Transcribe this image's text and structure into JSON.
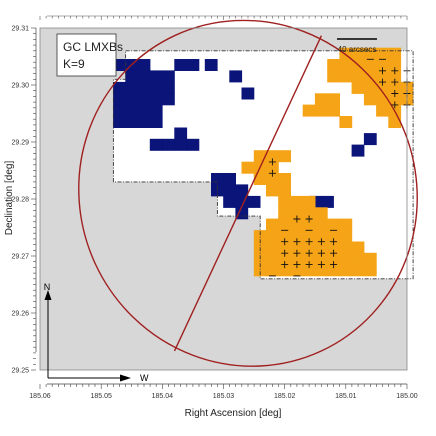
{
  "chart_data": {
    "type": "heatmap",
    "title": "",
    "xlabel": "Right Ascension [deg]",
    "ylabel": "Declination [deg]",
    "xlim": [
      185.06,
      185.0
    ],
    "ylim": [
      29.25,
      29.31
    ],
    "x_ticks": [
      "185.06",
      "185.05",
      "185.04",
      "185.03",
      "185.02",
      "185.01",
      "185.00"
    ],
    "y_ticks": [
      "29.25",
      "29.26",
      "29.27",
      "29.28",
      "29.29",
      "29.30",
      "29.31"
    ],
    "legend": {
      "line1": "GC LMXBs",
      "line2": "K=9"
    },
    "scale_bar_label": "40 arcsecs",
    "compass": {
      "north": "N",
      "west": "W"
    },
    "colors": {
      "outside_region": "#d7d7d7",
      "footprint": "#ffffff",
      "deficit": "#0b1478",
      "excess": "#f6a417",
      "ellipse": "#a02020",
      "major_axis": "#a02020"
    },
    "deficit_cells": [
      [
        185.047,
        29.3035
      ],
      [
        185.045,
        29.3035
      ],
      [
        185.043,
        29.3035
      ],
      [
        185.037,
        29.3035
      ],
      [
        185.035,
        29.3035
      ],
      [
        185.032,
        29.3035
      ],
      [
        185.045,
        29.3015
      ],
      [
        185.043,
        29.3015
      ],
      [
        185.041,
        29.3015
      ],
      [
        185.039,
        29.3015
      ],
      [
        185.047,
        29.2995
      ],
      [
        185.045,
        29.2995
      ],
      [
        185.043,
        29.2995
      ],
      [
        185.041,
        29.2995
      ],
      [
        185.039,
        29.2995
      ],
      [
        185.047,
        29.2975
      ],
      [
        185.045,
        29.2975
      ],
      [
        185.043,
        29.2975
      ],
      [
        185.041,
        29.2975
      ],
      [
        185.039,
        29.2975
      ],
      [
        185.028,
        29.3015
      ],
      [
        185.026,
        29.2985
      ],
      [
        185.047,
        29.2955
      ],
      [
        185.045,
        29.2955
      ],
      [
        185.043,
        29.2955
      ],
      [
        185.041,
        29.2955
      ],
      [
        185.047,
        29.2935
      ],
      [
        185.045,
        29.2935
      ],
      [
        185.043,
        29.2935
      ],
      [
        185.041,
        29.2935
      ],
      [
        185.037,
        29.2915
      ],
      [
        185.035,
        29.2895
      ],
      [
        185.037,
        29.2895
      ],
      [
        185.039,
        29.2895
      ],
      [
        185.041,
        29.2895
      ],
      [
        185.031,
        29.2835
      ],
      [
        185.029,
        29.2835
      ],
      [
        185.031,
        29.2815
      ],
      [
        185.029,
        29.2815
      ],
      [
        185.027,
        29.2815
      ],
      [
        185.029,
        29.2795
      ],
      [
        185.027,
        29.2795
      ],
      [
        185.025,
        29.2795
      ],
      [
        185.027,
        29.2775
      ],
      [
        185.006,
        29.2905
      ],
      [
        185.008,
        29.2885
      ],
      [
        185.015,
        29.2795
      ],
      [
        185.013,
        29.2795
      ]
    ],
    "excess_cells": [
      [
        185.01,
        29.3055
      ],
      [
        185.008,
        29.3055
      ],
      [
        185.006,
        29.3055
      ],
      [
        185.004,
        29.3055
      ],
      [
        185.002,
        29.3055
      ],
      [
        185.012,
        29.3035
      ],
      [
        185.01,
        29.3035
      ],
      [
        185.008,
        29.3035
      ],
      [
        185.006,
        29.3035
      ],
      [
        185.004,
        29.3035
      ],
      [
        185.002,
        29.3035
      ],
      [
        185.012,
        29.3015
      ],
      [
        185.01,
        29.3015
      ],
      [
        185.008,
        29.3015
      ],
      [
        185.006,
        29.3015
      ],
      [
        185.004,
        29.3015
      ],
      [
        185.002,
        29.3015
      ],
      [
        185.008,
        29.2995
      ],
      [
        185.006,
        29.2995
      ],
      [
        185.004,
        29.2995
      ],
      [
        185.002,
        29.2995
      ],
      [
        185.0,
        29.2995
      ],
      [
        185.014,
        29.2975
      ],
      [
        185.012,
        29.2975
      ],
      [
        185.006,
        29.2975
      ],
      [
        185.004,
        29.2975
      ],
      [
        185.002,
        29.2975
      ],
      [
        185.0,
        29.2975
      ],
      [
        185.016,
        29.2955
      ],
      [
        185.014,
        29.2955
      ],
      [
        185.012,
        29.2955
      ],
      [
        185.004,
        29.2955
      ],
      [
        185.002,
        29.2955
      ],
      [
        185.01,
        29.2935
      ],
      [
        185.002,
        29.2935
      ],
      [
        185.024,
        29.2875
      ],
      [
        185.022,
        29.2875
      ],
      [
        185.02,
        29.2875
      ],
      [
        185.026,
        29.2855
      ],
      [
        185.024,
        29.2855
      ],
      [
        185.022,
        29.2855
      ],
      [
        185.024,
        29.2835
      ],
      [
        185.022,
        29.2835
      ],
      [
        185.02,
        29.2835
      ],
      [
        185.022,
        29.2815
      ],
      [
        185.02,
        29.2815
      ],
      [
        185.02,
        29.2795
      ],
      [
        185.018,
        29.2795
      ],
      [
        185.016,
        29.2795
      ],
      [
        185.02,
        29.2775
      ],
      [
        185.018,
        29.2775
      ],
      [
        185.016,
        29.2775
      ],
      [
        185.014,
        29.2775
      ],
      [
        185.022,
        29.2755
      ],
      [
        185.02,
        29.2755
      ],
      [
        185.018,
        29.2755
      ],
      [
        185.016,
        29.2755
      ],
      [
        185.014,
        29.2755
      ],
      [
        185.012,
        29.2755
      ],
      [
        185.01,
        29.2755
      ],
      [
        185.024,
        29.2735
      ],
      [
        185.022,
        29.2735
      ],
      [
        185.02,
        29.2735
      ],
      [
        185.018,
        29.2735
      ],
      [
        185.016,
        29.2735
      ],
      [
        185.014,
        29.2735
      ],
      [
        185.012,
        29.2735
      ],
      [
        185.01,
        29.2735
      ],
      [
        185.024,
        29.2715
      ],
      [
        185.022,
        29.2715
      ],
      [
        185.02,
        29.2715
      ],
      [
        185.018,
        29.2715
      ],
      [
        185.016,
        29.2715
      ],
      [
        185.014,
        29.2715
      ],
      [
        185.012,
        29.2715
      ],
      [
        185.01,
        29.2715
      ],
      [
        185.008,
        29.2715
      ],
      [
        185.024,
        29.2695
      ],
      [
        185.022,
        29.2695
      ],
      [
        185.02,
        29.2695
      ],
      [
        185.018,
        29.2695
      ],
      [
        185.016,
        29.2695
      ],
      [
        185.014,
        29.2695
      ],
      [
        185.012,
        29.2695
      ],
      [
        185.01,
        29.2695
      ],
      [
        185.008,
        29.2695
      ],
      [
        185.006,
        29.2695
      ],
      [
        185.024,
        29.2675
      ],
      [
        185.022,
        29.2675
      ],
      [
        185.02,
        29.2675
      ],
      [
        185.018,
        29.2675
      ],
      [
        185.016,
        29.2675
      ],
      [
        185.014,
        29.2675
      ],
      [
        185.012,
        29.2675
      ],
      [
        185.01,
        29.2675
      ],
      [
        185.008,
        29.2675
      ],
      [
        185.006,
        29.2675
      ]
    ],
    "plus_markers": [
      [
        185.004,
        29.3025
      ],
      [
        185.002,
        29.3025
      ],
      [
        185.0,
        29.3025
      ],
      [
        185.004,
        29.3005
      ],
      [
        185.002,
        29.3005
      ],
      [
        185.0,
        29.3005
      ],
      [
        185.002,
        29.2985
      ],
      [
        185.0,
        29.2985
      ],
      [
        185.002,
        29.2965
      ],
      [
        185.0,
        29.2965
      ],
      [
        185.022,
        29.2865
      ],
      [
        185.022,
        29.2845
      ],
      [
        185.018,
        29.2765
      ],
      [
        185.016,
        29.2765
      ],
      [
        185.02,
        29.2725
      ],
      [
        185.018,
        29.2725
      ],
      [
        185.016,
        29.2725
      ],
      [
        185.014,
        29.2725
      ],
      [
        185.012,
        29.2725
      ],
      [
        185.02,
        29.2705
      ],
      [
        185.018,
        29.2705
      ],
      [
        185.016,
        29.2705
      ],
      [
        185.014,
        29.2705
      ],
      [
        185.012,
        29.2705
      ],
      [
        185.02,
        29.2685
      ],
      [
        185.018,
        29.2685
      ],
      [
        185.016,
        29.2685
      ],
      [
        185.014,
        29.2685
      ],
      [
        185.012,
        29.2685
      ]
    ],
    "minus_markers": [
      [
        185.004,
        29.3045
      ],
      [
        185.006,
        29.3045
      ],
      [
        185.02,
        29.2745
      ],
      [
        185.016,
        29.2745
      ],
      [
        185.012,
        29.2745
      ],
      [
        185.022,
        29.2665
      ],
      [
        185.018,
        29.2665
      ]
    ],
    "footprint_polygon": [
      [
        185.046,
        29.306
      ],
      [
        184.999,
        29.306
      ],
      [
        184.999,
        29.266
      ],
      [
        185.024,
        29.266
      ],
      [
        185.024,
        29.277
      ],
      [
        185.031,
        29.277
      ],
      [
        185.031,
        29.283
      ],
      [
        185.048,
        29.283
      ],
      [
        185.048,
        29.301
      ],
      [
        185.046,
        29.301
      ]
    ],
    "ellipse": {
      "center": [
        185.026,
        29.281
      ],
      "semi_major_deg": 0.0305,
      "semi_minor_deg": 0.0275,
      "pa_deg": -25
    }
  }
}
